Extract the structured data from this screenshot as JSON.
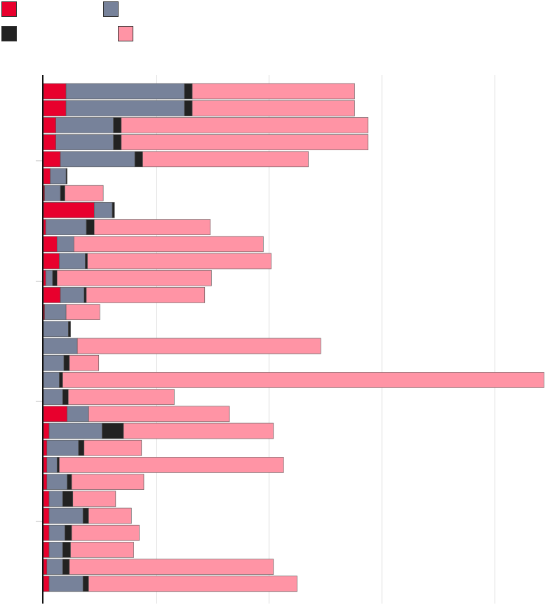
{
  "chart_data": {
    "type": "bar",
    "orientation": "horizontal",
    "stacked": true,
    "title": "",
    "xlabel": "",
    "ylabel": "",
    "xlim": [
      0,
      4.45
    ],
    "grid": true,
    "legend_position": "top-left",
    "series": [
      {
        "name": "",
        "color": "#e8002d",
        "values": [
          0.2,
          0.2,
          0.11,
          0.11,
          0.15,
          0.06,
          0.01,
          0.45,
          0.02,
          0.12,
          0.14,
          0.02,
          0.15,
          0.01,
          0.0,
          0.0,
          0.0,
          0.0,
          0.0,
          0.21,
          0.05,
          0.03,
          0.03,
          0.03,
          0.05,
          0.05,
          0.05,
          0.05,
          0.03,
          0.05
        ]
      },
      {
        "name": "",
        "color": "#77829a",
        "values": [
          1.05,
          1.05,
          0.51,
          0.51,
          0.66,
          0.14,
          0.14,
          0.16,
          0.36,
          0.15,
          0.23,
          0.06,
          0.21,
          0.19,
          0.22,
          0.3,
          0.18,
          0.14,
          0.17,
          0.19,
          0.47,
          0.28,
          0.09,
          0.18,
          0.12,
          0.3,
          0.14,
          0.12,
          0.14,
          0.3
        ]
      },
      {
        "name": "",
        "color": "#222222",
        "values": [
          0.07,
          0.07,
          0.07,
          0.07,
          0.07,
          0.01,
          0.04,
          0.02,
          0.07,
          0.0,
          0.02,
          0.04,
          0.02,
          0.0,
          0.02,
          0.0,
          0.05,
          0.03,
          0.05,
          0.0,
          0.19,
          0.05,
          0.02,
          0.04,
          0.09,
          0.05,
          0.06,
          0.07,
          0.06,
          0.05
        ]
      },
      {
        "name": "",
        "color": "#ff94a5",
        "values": [
          1.44,
          1.44,
          2.19,
          2.19,
          1.47,
          0.0,
          0.34,
          0.0,
          1.03,
          1.68,
          1.63,
          1.37,
          1.05,
          0.3,
          0.0,
          2.16,
          0.26,
          4.27,
          0.94,
          1.25,
          1.33,
          0.51,
          1.99,
          0.64,
          0.38,
          0.38,
          0.6,
          0.56,
          1.81,
          1.85
        ]
      }
    ]
  }
}
